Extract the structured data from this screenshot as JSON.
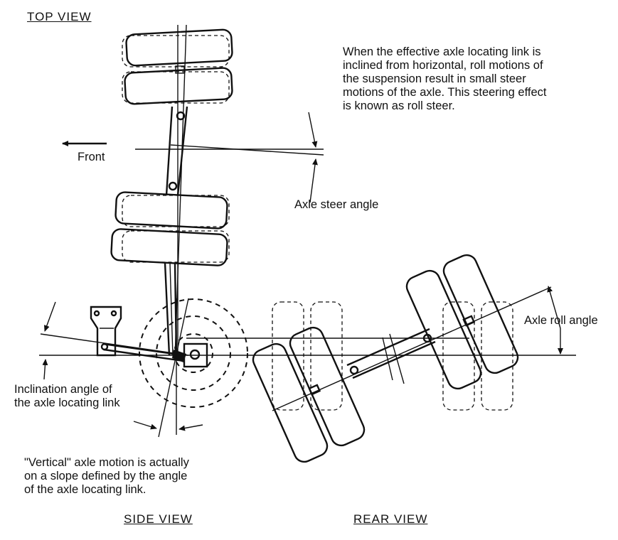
{
  "top_view": {
    "title": "TOP VIEW"
  },
  "side_view": {
    "title": "SIDE VIEW"
  },
  "rear_view": {
    "title": "REAR VIEW"
  },
  "labels": {
    "roll_steer_note": "When the effective axle locating link is\ninclined from horizontal, roll motions of\nthe suspension result in small steer\nmotions of the axle.  This steering effect\nis known as roll steer.",
    "front": "Front",
    "axle_steer_angle": "Axle steer angle",
    "axle_roll_angle": "Axle roll angle",
    "inclination_angle": "Inclination angle of\nthe axle locating link",
    "vertical_motion_note": "\"Vertical\" axle motion is actually\non a slope defined by the angle\nof the axle locating link."
  }
}
